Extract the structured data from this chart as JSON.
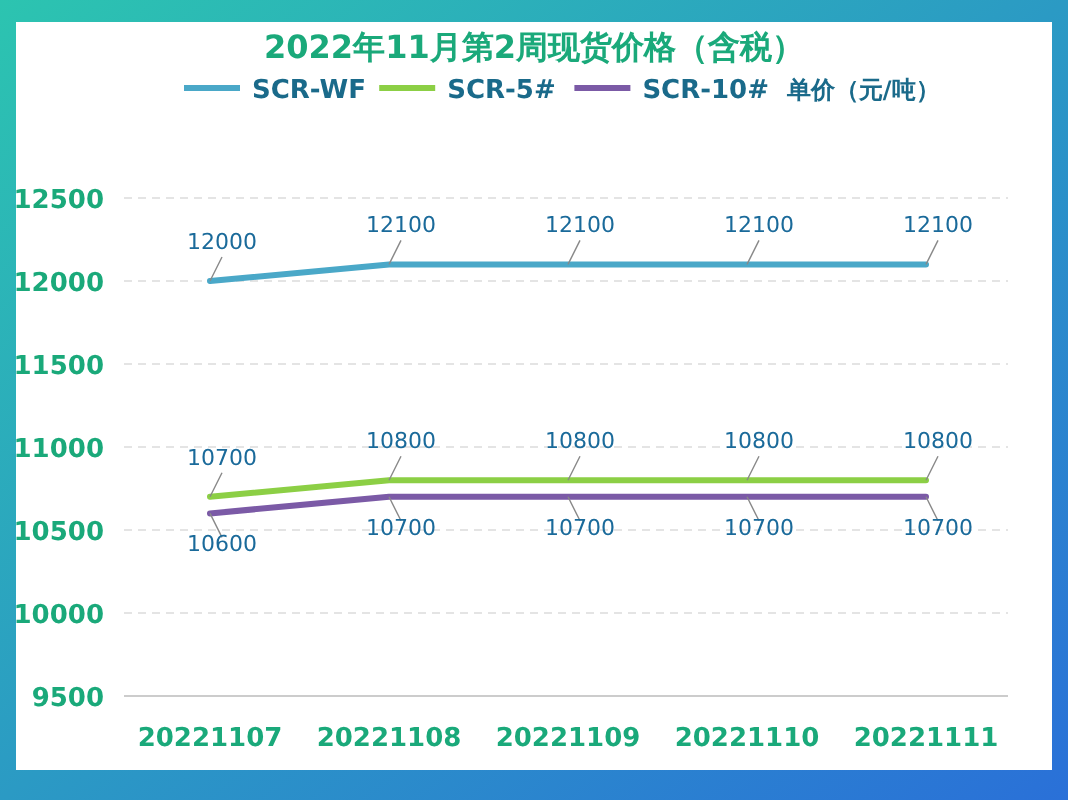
{
  "chart_data": {
    "type": "line",
    "title": "2022年11月第2周现货价格（含税）",
    "ylabel": "单价（元/吨）",
    "categories": [
      "20221107",
      "20221108",
      "20221109",
      "20221110",
      "20221111"
    ],
    "series": [
      {
        "name": "SCR-WF",
        "color": "#4aa8c8",
        "values": [
          12000,
          12100,
          12100,
          12100,
          12100
        ]
      },
      {
        "name": "SCR-5#",
        "color": "#8ccf45",
        "values": [
          10700,
          10800,
          10800,
          10800,
          10800
        ]
      },
      {
        "name": "SCR-10#",
        "color": "#7b5aa6",
        "values": [
          10600,
          10700,
          10700,
          10700,
          10700
        ]
      }
    ],
    "ylim": [
      9500,
      12500
    ],
    "yticks": [
      9500,
      10000,
      10500,
      11000,
      11500,
      12000,
      12500
    ],
    "grid": "y",
    "legend": "top",
    "data_labels": true,
    "marker": "none",
    "line_style": "solid"
  }
}
